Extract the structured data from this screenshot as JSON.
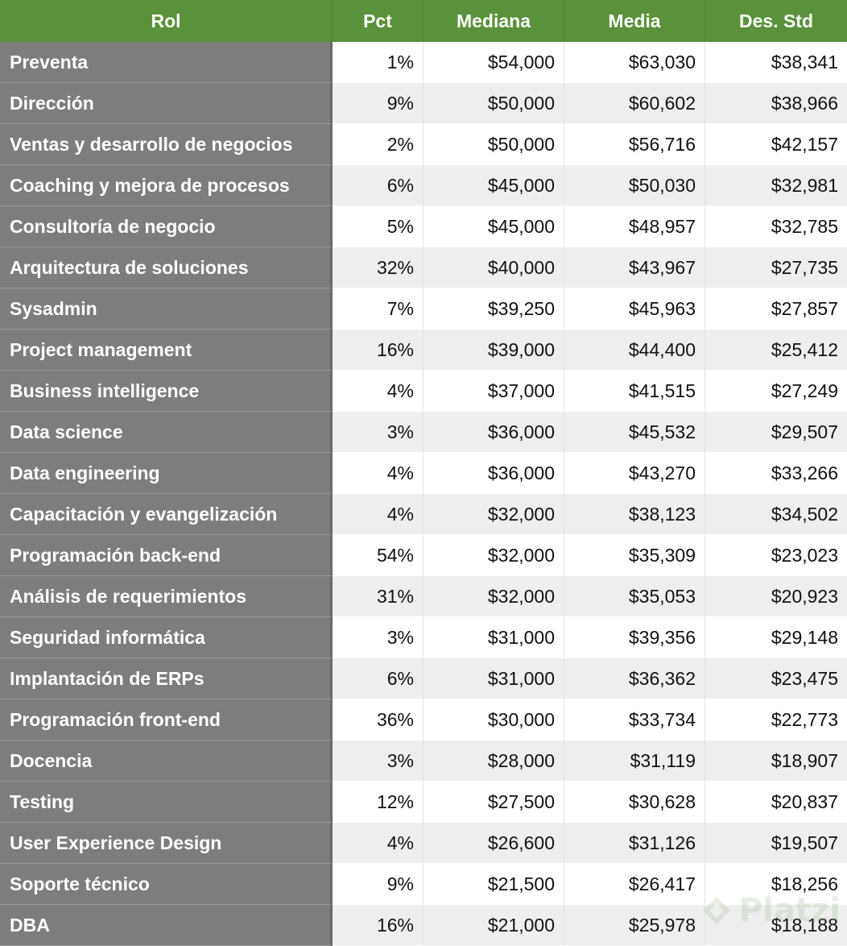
{
  "columns": [
    "Rol",
    "Pct",
    "Mediana",
    "Media",
    "Des. Std"
  ],
  "rows": [
    [
      "Preventa",
      "1%",
      "$54,000",
      "$63,030",
      "$38,341"
    ],
    [
      "Dirección",
      "9%",
      "$50,000",
      "$60,602",
      "$38,966"
    ],
    [
      "Ventas y desarrollo de negocios",
      "2%",
      "$50,000",
      "$56,716",
      "$42,157"
    ],
    [
      "Coaching y mejora de procesos",
      "6%",
      "$45,000",
      "$50,030",
      "$32,981"
    ],
    [
      "Consultoría de negocio",
      "5%",
      "$45,000",
      "$48,957",
      "$32,785"
    ],
    [
      "Arquitectura de soluciones",
      "32%",
      "$40,000",
      "$43,967",
      "$27,735"
    ],
    [
      "Sysadmin",
      "7%",
      "$39,250",
      "$45,963",
      "$27,857"
    ],
    [
      "Project management",
      "16%",
      "$39,000",
      "$44,400",
      "$25,412"
    ],
    [
      "Business intelligence",
      "4%",
      "$37,000",
      "$41,515",
      "$27,249"
    ],
    [
      "Data science",
      "3%",
      "$36,000",
      "$45,532",
      "$29,507"
    ],
    [
      "Data engineering",
      "4%",
      "$36,000",
      "$43,270",
      "$33,266"
    ],
    [
      "Capacitación y evangelización",
      "4%",
      "$32,000",
      "$38,123",
      "$34,502"
    ],
    [
      "Programación back-end",
      "54%",
      "$32,000",
      "$35,309",
      "$23,023"
    ],
    [
      "Análisis de requerimientos",
      "31%",
      "$32,000",
      "$35,053",
      "$20,923"
    ],
    [
      "Seguridad informática",
      "3%",
      "$31,000",
      "$39,356",
      "$29,148"
    ],
    [
      "Implantación de ERPs",
      "6%",
      "$31,000",
      "$36,362",
      "$23,475"
    ],
    [
      "Programación front-end",
      "36%",
      "$30,000",
      "$33,734",
      "$22,773"
    ],
    [
      "Docencia",
      "3%",
      "$28,000",
      "$31,119",
      "$18,907"
    ],
    [
      "Testing",
      "12%",
      "$27,500",
      "$30,628",
      "$20,837"
    ],
    [
      "User Experience Design",
      "4%",
      "$26,600",
      "$31,126",
      "$19,507"
    ],
    [
      "Soporte técnico",
      "9%",
      "$21,500",
      "$26,417",
      "$18,256"
    ],
    [
      "DBA",
      "16%",
      "$21,000",
      "$25,978",
      "$18,188"
    ]
  ],
  "watermark": {
    "text": "Platzi",
    "icon": "platzi-logo-icon"
  },
  "colors": {
    "header_bg": "#5a913b",
    "rol_bg": "#7d7d7d",
    "stripe": "#eeeeee"
  }
}
